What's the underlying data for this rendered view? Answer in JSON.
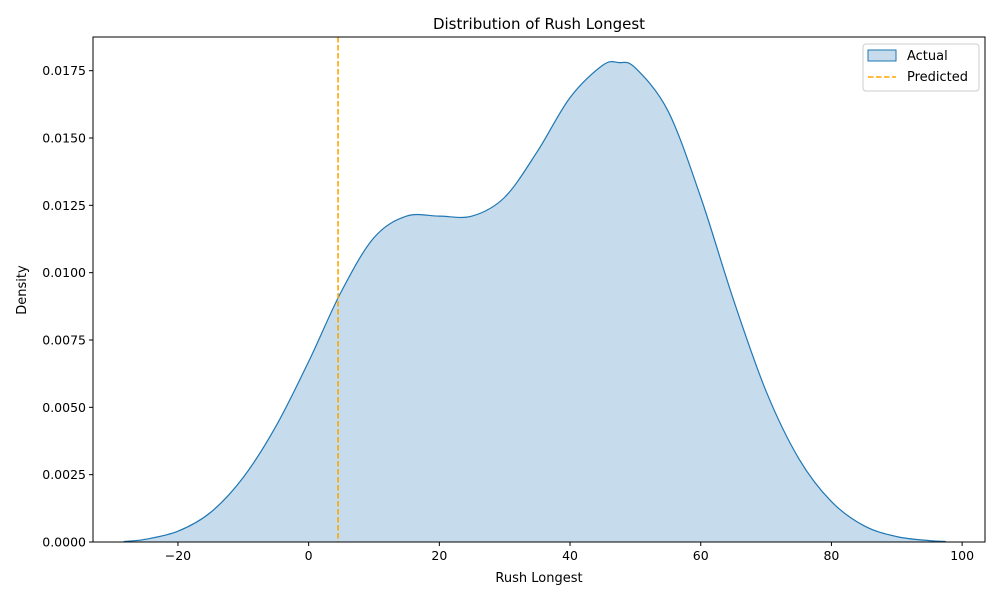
{
  "chart_data": {
    "type": "area",
    "title": "Distribution of Rush Longest",
    "xlabel": "Rush Longest",
    "ylabel": "Density",
    "xlim": [
      -33.0,
      103.5
    ],
    "ylim": [
      0,
      0.01875
    ],
    "x_ticks": [
      -20,
      0,
      20,
      40,
      60,
      80,
      100
    ],
    "x_tick_labels": [
      "−20",
      "0",
      "20",
      "40",
      "60",
      "80",
      "100"
    ],
    "y_ticks": [
      0,
      0.0025,
      0.005,
      0.0075,
      0.01,
      0.0125,
      0.015,
      0.0175
    ],
    "y_tick_labels": [
      "0.0000",
      "0.0025",
      "0.0050",
      "0.0075",
      "0.0100",
      "0.0125",
      "0.0150",
      "0.0175"
    ],
    "grid": false,
    "legend_position": "top-right",
    "series": [
      {
        "name": "Actual",
        "kind": "kde-filled",
        "color": "#1f77b4",
        "fill": "#c6dcec",
        "x": [
          -28.3,
          -25,
          -20,
          -15,
          -10,
          -5,
          0,
          5,
          10,
          15,
          20,
          25,
          30,
          35,
          40,
          45,
          47.5,
          50,
          55,
          60,
          65,
          70,
          75,
          80,
          85,
          90,
          95,
          97.5
        ],
        "y": [
          2e-05,
          0.0001,
          0.0004,
          0.0011,
          0.0024,
          0.0043,
          0.0067,
          0.0093,
          0.0113,
          0.0121,
          0.0121,
          0.0121,
          0.0128,
          0.0145,
          0.0165,
          0.0177,
          0.0178,
          0.0176,
          0.016,
          0.0128,
          0.009,
          0.0056,
          0.0031,
          0.0015,
          0.0006,
          0.0002,
          5e-05,
          2e-05
        ]
      },
      {
        "name": "Predicted",
        "kind": "vline",
        "color": "#ffa500",
        "x": 4.5
      }
    ]
  }
}
